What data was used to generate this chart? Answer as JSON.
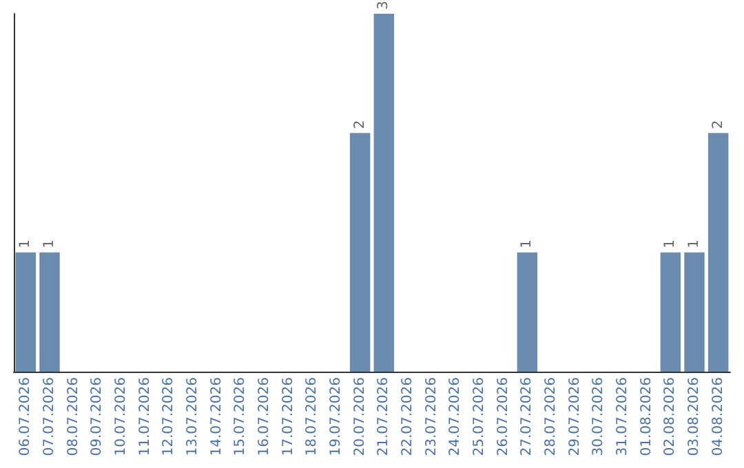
{
  "chart_data": {
    "type": "bar",
    "categories": [
      "06.07.2026",
      "07.07.2026",
      "08.07.2026",
      "09.07.2026",
      "10.07.2026",
      "11.07.2026",
      "12.07.2026",
      "13.07.2026",
      "14.07.2026",
      "15.07.2026",
      "16.07.2026",
      "17.07.2026",
      "18.07.2026",
      "19.07.2026",
      "20.07.2026",
      "21.07.2026",
      "22.07.2026",
      "23.07.2026",
      "24.07.2026",
      "25.07.2026",
      "26.07.2026",
      "27.07.2026",
      "28.07.2026",
      "29.07.2026",
      "30.07.2026",
      "31.07.2026",
      "01.08.2026",
      "02.08.2026",
      "03.08.2026",
      "04.08.2026"
    ],
    "values": [
      1,
      1,
      0,
      0,
      0,
      0,
      0,
      0,
      0,
      0,
      0,
      0,
      0,
      0,
      2,
      3,
      0,
      0,
      0,
      0,
      0,
      1,
      0,
      0,
      0,
      0,
      0,
      1,
      1,
      2
    ],
    "value_labels": [
      "1",
      "1",
      null,
      null,
      null,
      null,
      null,
      null,
      null,
      null,
      null,
      null,
      null,
      null,
      "2",
      "3",
      null,
      null,
      null,
      null,
      null,
      "1",
      null,
      null,
      null,
      null,
      null,
      "1",
      "1",
      "2"
    ],
    "color": "#6b8cae",
    "ylim": [
      0,
      3
    ],
    "grid": false,
    "tick_labels": "x"
  }
}
